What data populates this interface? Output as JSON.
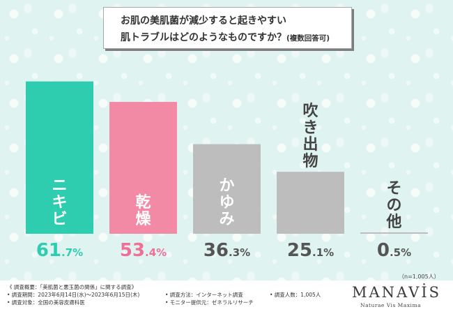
{
  "title": {
    "line1": "お肌の美肌菌が減少すると起きやすい",
    "line2": "肌トラブルはどのようなものですか？",
    "note": "(複数回答可)"
  },
  "chart_data": {
    "type": "bar",
    "categories": [
      "ニキビ",
      "乾燥",
      "かゆみ",
      "吹き出物",
      "その他"
    ],
    "values": [
      61.7,
      53.4,
      36.3,
      25.1,
      0.5
    ],
    "value_labels": [
      {
        "int": "61",
        "dec": ".7%"
      },
      {
        "int": "53",
        "dec": ".4%"
      },
      {
        "int": "36",
        "dec": ".3%"
      },
      {
        "int": "25",
        "dec": ".1%"
      },
      {
        "int": "0",
        "dec": ".5%"
      }
    ],
    "unit": "%",
    "ylim": [
      0,
      65
    ],
    "grid": false,
    "colors": {
      "bars": [
        "#2ecdb0",
        "#f28aa6",
        "#bdbdbd",
        "#bdbdbd",
        "#bdbdbd"
      ],
      "value_text": [
        "#2ecdb0",
        "#f06f95",
        "#555555",
        "#555555",
        "#555555"
      ],
      "bar_label_other": "#444444"
    },
    "sample_note": "（n=1,005人）"
  },
  "footer": {
    "survey_title": "《 調査概要：「美肌菌と悪玉菌の関係」に関する調査》",
    "period": "• 調査期間：2023年6月14日(水)～2023年6月15日(木)",
    "target": "• 調査対象：全国の美容皮膚科医",
    "method": "• 調査方法：インターネット調査",
    "provider": "• モニター提供元：ゼネラルリサーチ",
    "count": "• 調査人数：1,005人"
  },
  "brand": {
    "name": "MANAVİS",
    "tagline": "Naturae Vis Maxima"
  }
}
